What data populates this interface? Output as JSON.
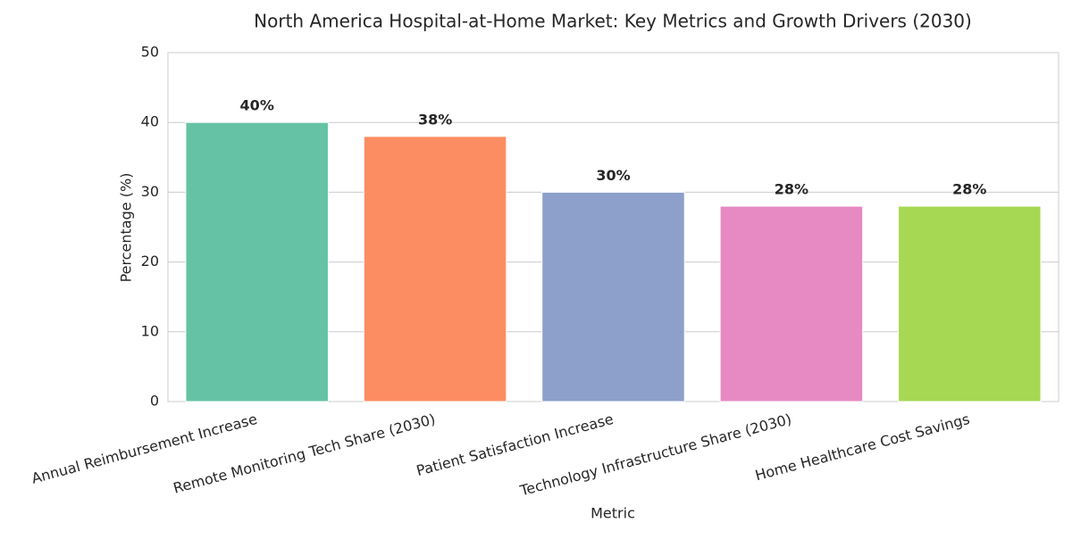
{
  "chart_data": {
    "type": "bar",
    "title": "North America Hospital-at-Home Market: Key Metrics and Growth Drivers (2030)",
    "x_label": "Metric",
    "y_label": "Percentage (%)",
    "categories": [
      "Annual Reimbursement Increase",
      "Remote Monitoring Tech Share (2030)",
      "Patient Satisfaction Increase",
      "Technology Infrastructure Share (2030)",
      "Home Healthcare Cost Savings"
    ],
    "values": [
      40,
      38,
      30,
      28,
      28
    ],
    "value_labels": [
      "40%",
      "38%",
      "30%",
      "28%",
      "28%"
    ],
    "colors": [
      "#66c2a5",
      "#fc8d62",
      "#8da0cb",
      "#e78ac3",
      "#a6d854"
    ],
    "ylim": [
      0,
      50
    ],
    "yticks": [
      0,
      10,
      20,
      30,
      40,
      50
    ],
    "grid": true
  }
}
